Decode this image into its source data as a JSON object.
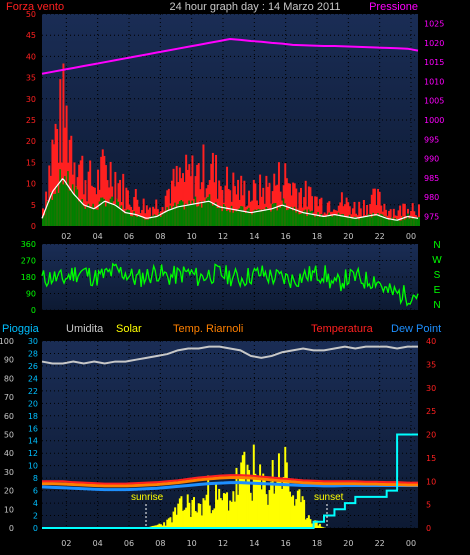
{
  "header": {
    "title": "24 hour graph day : 14 Marzo 2011",
    "left_label": "Forza vento",
    "right_label": "Pressione"
  },
  "colors": {
    "wind": "#ff2020",
    "gust_white": "#ffffff",
    "wind_green": "#008000",
    "pressure": "#ff00ff",
    "direction": "#00ff00",
    "humidity": "#c8c8c8",
    "solar": "#ffff00",
    "temp": "#ff2020",
    "dew": "#1e90ff",
    "rain": "#00ffff",
    "panel_top": "#1a2d55",
    "panel_bottom": "#0d1a33"
  },
  "chart_data": [
    {
      "type": "area",
      "panel": "wind-pressure",
      "left_axis": {
        "label": "Forza vento",
        "ticks": [
          0,
          5,
          10,
          15,
          20,
          25,
          30,
          35,
          40,
          45,
          50
        ],
        "ylim": [
          0,
          50
        ]
      },
      "right_axis": {
        "label": "Pressione",
        "ticks": [
          975,
          980,
          985,
          990,
          995,
          1000,
          1005,
          1010,
          1015,
          1020,
          1025
        ],
        "ylim": [
          972.5,
          1027.5
        ]
      },
      "x_ticks": [
        "02",
        "04",
        "06",
        "08",
        "10",
        "12",
        "14",
        "16",
        "18",
        "20",
        "22",
        "00"
      ],
      "series": [
        {
          "name": "Forza vento",
          "values": [
            4,
            18,
            25,
            17,
            11,
            9,
            13,
            11,
            7,
            6,
            4,
            5,
            8,
            10,
            11,
            12,
            13,
            10,
            9,
            8,
            7,
            8,
            9,
            11,
            9,
            7,
            6,
            5,
            6,
            5,
            4,
            5,
            6,
            4,
            3,
            5,
            4
          ]
        },
        {
          "name": "Pressione",
          "values": [
            1012,
            1012.5,
            1013,
            1013.5,
            1014,
            1014.5,
            1015,
            1015.5,
            1016,
            1016.5,
            1017,
            1017.5,
            1018,
            1018.5,
            1019,
            1019.5,
            1020,
            1020.5,
            1021,
            1020.8,
            1020.5,
            1020.3,
            1020,
            1019.8,
            1019.5,
            1019.4,
            1019.3,
            1019.2,
            1019.2,
            1019.1,
            1019,
            1018.9,
            1018.8,
            1018.7,
            1018.6,
            1018.5,
            1018
          ]
        }
      ]
    },
    {
      "type": "line",
      "panel": "wind-direction",
      "left_axis": {
        "ticks": [
          0,
          90,
          180,
          270,
          360
        ],
        "ylim": [
          0,
          360
        ]
      },
      "right_axis_labels": [
        "N",
        "W",
        "S",
        "E",
        "N"
      ],
      "series": [
        {
          "name": "direction",
          "values": [
            170,
            180,
            165,
            200,
            210,
            175,
            190,
            215,
            200,
            170,
            185,
            210,
            180,
            190,
            205,
            175,
            195,
            200,
            185,
            170,
            190,
            200,
            180,
            175,
            165,
            185,
            195,
            200,
            130,
            170,
            180,
            160,
            170,
            100,
            90,
            80,
            90
          ]
        }
      ]
    },
    {
      "type": "area",
      "panel": "humidity-solar-temp-dew-rain",
      "legend": [
        "Pioggia",
        "Umidita",
        "Solar",
        "Temp. Riarnoli",
        "Temperatura",
        "Dew Point"
      ],
      "left_axis_rain": {
        "label": "Pioggia",
        "ticks": [
          0,
          10,
          20,
          30,
          40,
          50,
          60,
          70,
          80,
          90,
          100
        ],
        "ylim": [
          0,
          100
        ]
      },
      "left_axis_solar": {
        "ticks": [
          0,
          2,
          4,
          6,
          8,
          10,
          12,
          14,
          16,
          18,
          20,
          22,
          24,
          26,
          28,
          30
        ],
        "ylim": [
          0,
          30
        ]
      },
      "right_axis_temp": {
        "ticks": [
          0,
          5,
          10,
          15,
          20,
          25,
          30,
          35,
          40
        ],
        "ylim": [
          0,
          40
        ]
      },
      "annotations": [
        {
          "label": "sunrise",
          "x_hour": 6.7
        },
        {
          "label": "sunset",
          "x_hour": 18.4
        }
      ],
      "series": [
        {
          "name": "Umidita",
          "values": [
            89,
            88,
            88,
            89,
            88,
            89,
            88,
            89,
            89,
            90,
            91,
            92,
            93,
            95,
            96,
            96,
            97,
            97,
            96,
            95,
            92,
            91,
            92,
            94,
            95,
            96,
            95,
            95,
            96,
            97,
            96,
            97,
            97,
            97,
            96,
            97,
            97
          ]
        },
        {
          "name": "Solar",
          "values": [
            0,
            0,
            0,
            0,
            0,
            0,
            0,
            0,
            0,
            0,
            0,
            0.5,
            1,
            3,
            4,
            3,
            6,
            4,
            5,
            8,
            9,
            6,
            8,
            10,
            5,
            3,
            1,
            0,
            0,
            0,
            0,
            0,
            0,
            0,
            0,
            0,
            0
          ]
        },
        {
          "name": "Temperatura",
          "values": [
            10,
            10,
            10,
            9.8,
            9.7,
            9.6,
            9.5,
            9.5,
            9.5,
            9.6,
            9.7,
            9.8,
            10,
            10.2,
            10.5,
            10.8,
            11,
            11.2,
            11.3,
            11.3,
            11.2,
            11,
            10.8,
            10.6,
            10.4,
            10.2,
            10.1,
            10,
            10,
            10,
            10,
            9.9,
            9.9,
            9.8,
            9.8,
            9.7,
            9.7
          ]
        },
        {
          "name": "Temp. Riarnoli",
          "values": [
            9.5,
            9.5,
            9.4,
            9.3,
            9.2,
            9.1,
            9,
            9,
            9,
            9.1,
            9.2,
            9.3,
            9.5,
            9.7,
            10,
            10.3,
            10.5,
            10.7,
            10.8,
            10.8,
            10.7,
            10.5,
            10.3,
            10.1,
            9.9,
            9.7,
            9.6,
            9.5,
            9.5,
            9.5,
            9.5,
            9.4,
            9.4,
            9.3,
            9.3,
            9.2,
            9.2
          ]
        },
        {
          "name": "Dew Point",
          "values": [
            8.8,
            8.7,
            8.6,
            8.5,
            8.4,
            8.3,
            8.2,
            8.2,
            8.2,
            8.3,
            8.4,
            8.5,
            8.7,
            8.9,
            9.1,
            9.3,
            9.5,
            9.6,
            9.7,
            9.7,
            9.6,
            9.5,
            9.4,
            9.3,
            9.2,
            9.1,
            9.1,
            9,
            9,
            9.1,
            9.1,
            9.1,
            9.1,
            9.1,
            9.1,
            9.1,
            9.1
          ]
        },
        {
          "name": "Pioggia",
          "values": [
            0,
            0,
            0,
            0,
            0,
            0,
            0,
            0,
            0,
            0,
            0,
            0,
            0,
            0,
            0,
            0,
            0,
            0,
            0,
            0,
            0,
            0,
            0,
            0,
            0,
            0,
            1,
            2,
            3,
            4,
            5,
            5,
            5,
            6,
            15,
            15,
            15
          ]
        }
      ]
    }
  ]
}
